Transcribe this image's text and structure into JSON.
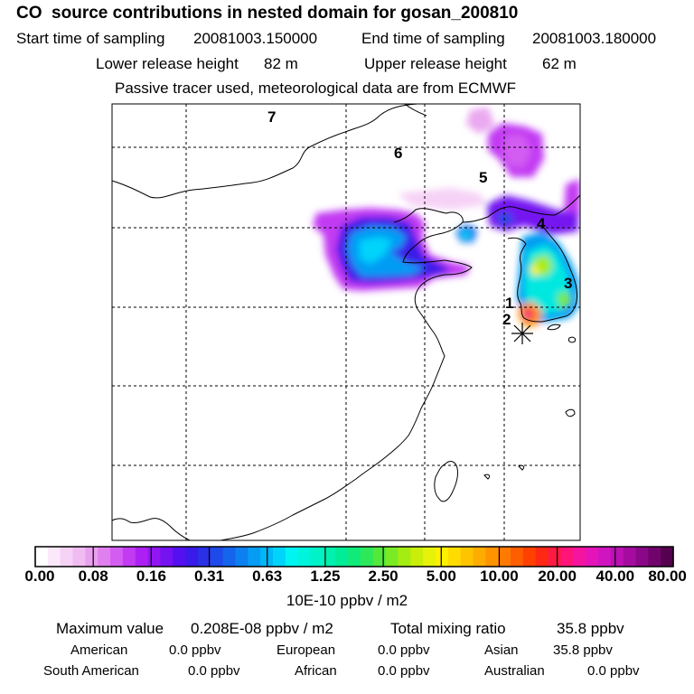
{
  "header": {
    "title": "CO  source contributions in nested domain for gosan_200810",
    "start_label": "Start time of sampling",
    "start_value": "20081003.150000",
    "end_label": "End time of sampling",
    "end_value": "20081003.180000",
    "lower_label": "Lower release height",
    "lower_value": "82 m",
    "upper_label": "Upper release height",
    "upper_value": "62 m",
    "note": "Passive tracer used, meteorological data are from ECMWF"
  },
  "map": {
    "region_labels": [
      "1",
      "2",
      "3",
      "4",
      "5",
      "6",
      "7"
    ],
    "receptor_marker": "asterisk",
    "grid": "dashed"
  },
  "colorbar": {
    "tick_labels": [
      "0.00",
      "0.08",
      "0.16",
      "0.31",
      "0.63",
      "1.25",
      "2.50",
      "5.00",
      "10.00",
      "20.00",
      "40.00",
      "80.00"
    ],
    "colors": [
      "#ffffff",
      "#fbe8fb",
      "#f6d2f6",
      "#f0bcf1",
      "#e9a0ee",
      "#e07ff0",
      "#d35df2",
      "#c23bf3",
      "#ad20f3",
      "#9216f2",
      "#7412f1",
      "#5410f0",
      "#3a1ae8",
      "#2a30e6",
      "#1d4ae8",
      "#1464ec",
      "#0d80f0",
      "#069cf4",
      "#00b8f8",
      "#00d4fb",
      "#00f4f2",
      "#00f4dc",
      "#00f2c6",
      "#00f0ae",
      "#00ec96",
      "#10ea78",
      "#2ee85a",
      "#52e83c",
      "#7aea24",
      "#a4ec12",
      "#c8ee0a",
      "#e6f208",
      "#fff000",
      "#ffdc00",
      "#ffc400",
      "#ffac00",
      "#ff9400",
      "#ff7a00",
      "#ff5e00",
      "#ff4000",
      "#ff2814",
      "#ff1a44",
      "#ff1478",
      "#f414a0",
      "#e414b8",
      "#d014c0",
      "#bc10b4",
      "#a40ca0",
      "#8a0888",
      "#70046c",
      "#560050"
    ],
    "units": "10E-10 ppbv / m2"
  },
  "stats": {
    "max_label": "Maximum value",
    "max_value": "0.208E-08 ppbv / m2",
    "total_label": "Total mixing ratio",
    "total_value": "35.8 ppbv",
    "regions": [
      {
        "name": "American",
        "value": "0.0 ppbv"
      },
      {
        "name": "European",
        "value": "0.0 ppbv"
      },
      {
        "name": "Asian",
        "value": "35.8 ppbv"
      },
      {
        "name": "South American",
        "value": "0.0 ppbv"
      },
      {
        "name": "African",
        "value": "0.0 ppbv"
      },
      {
        "name": "Australian",
        "value": "0.0 ppbv"
      }
    ]
  }
}
